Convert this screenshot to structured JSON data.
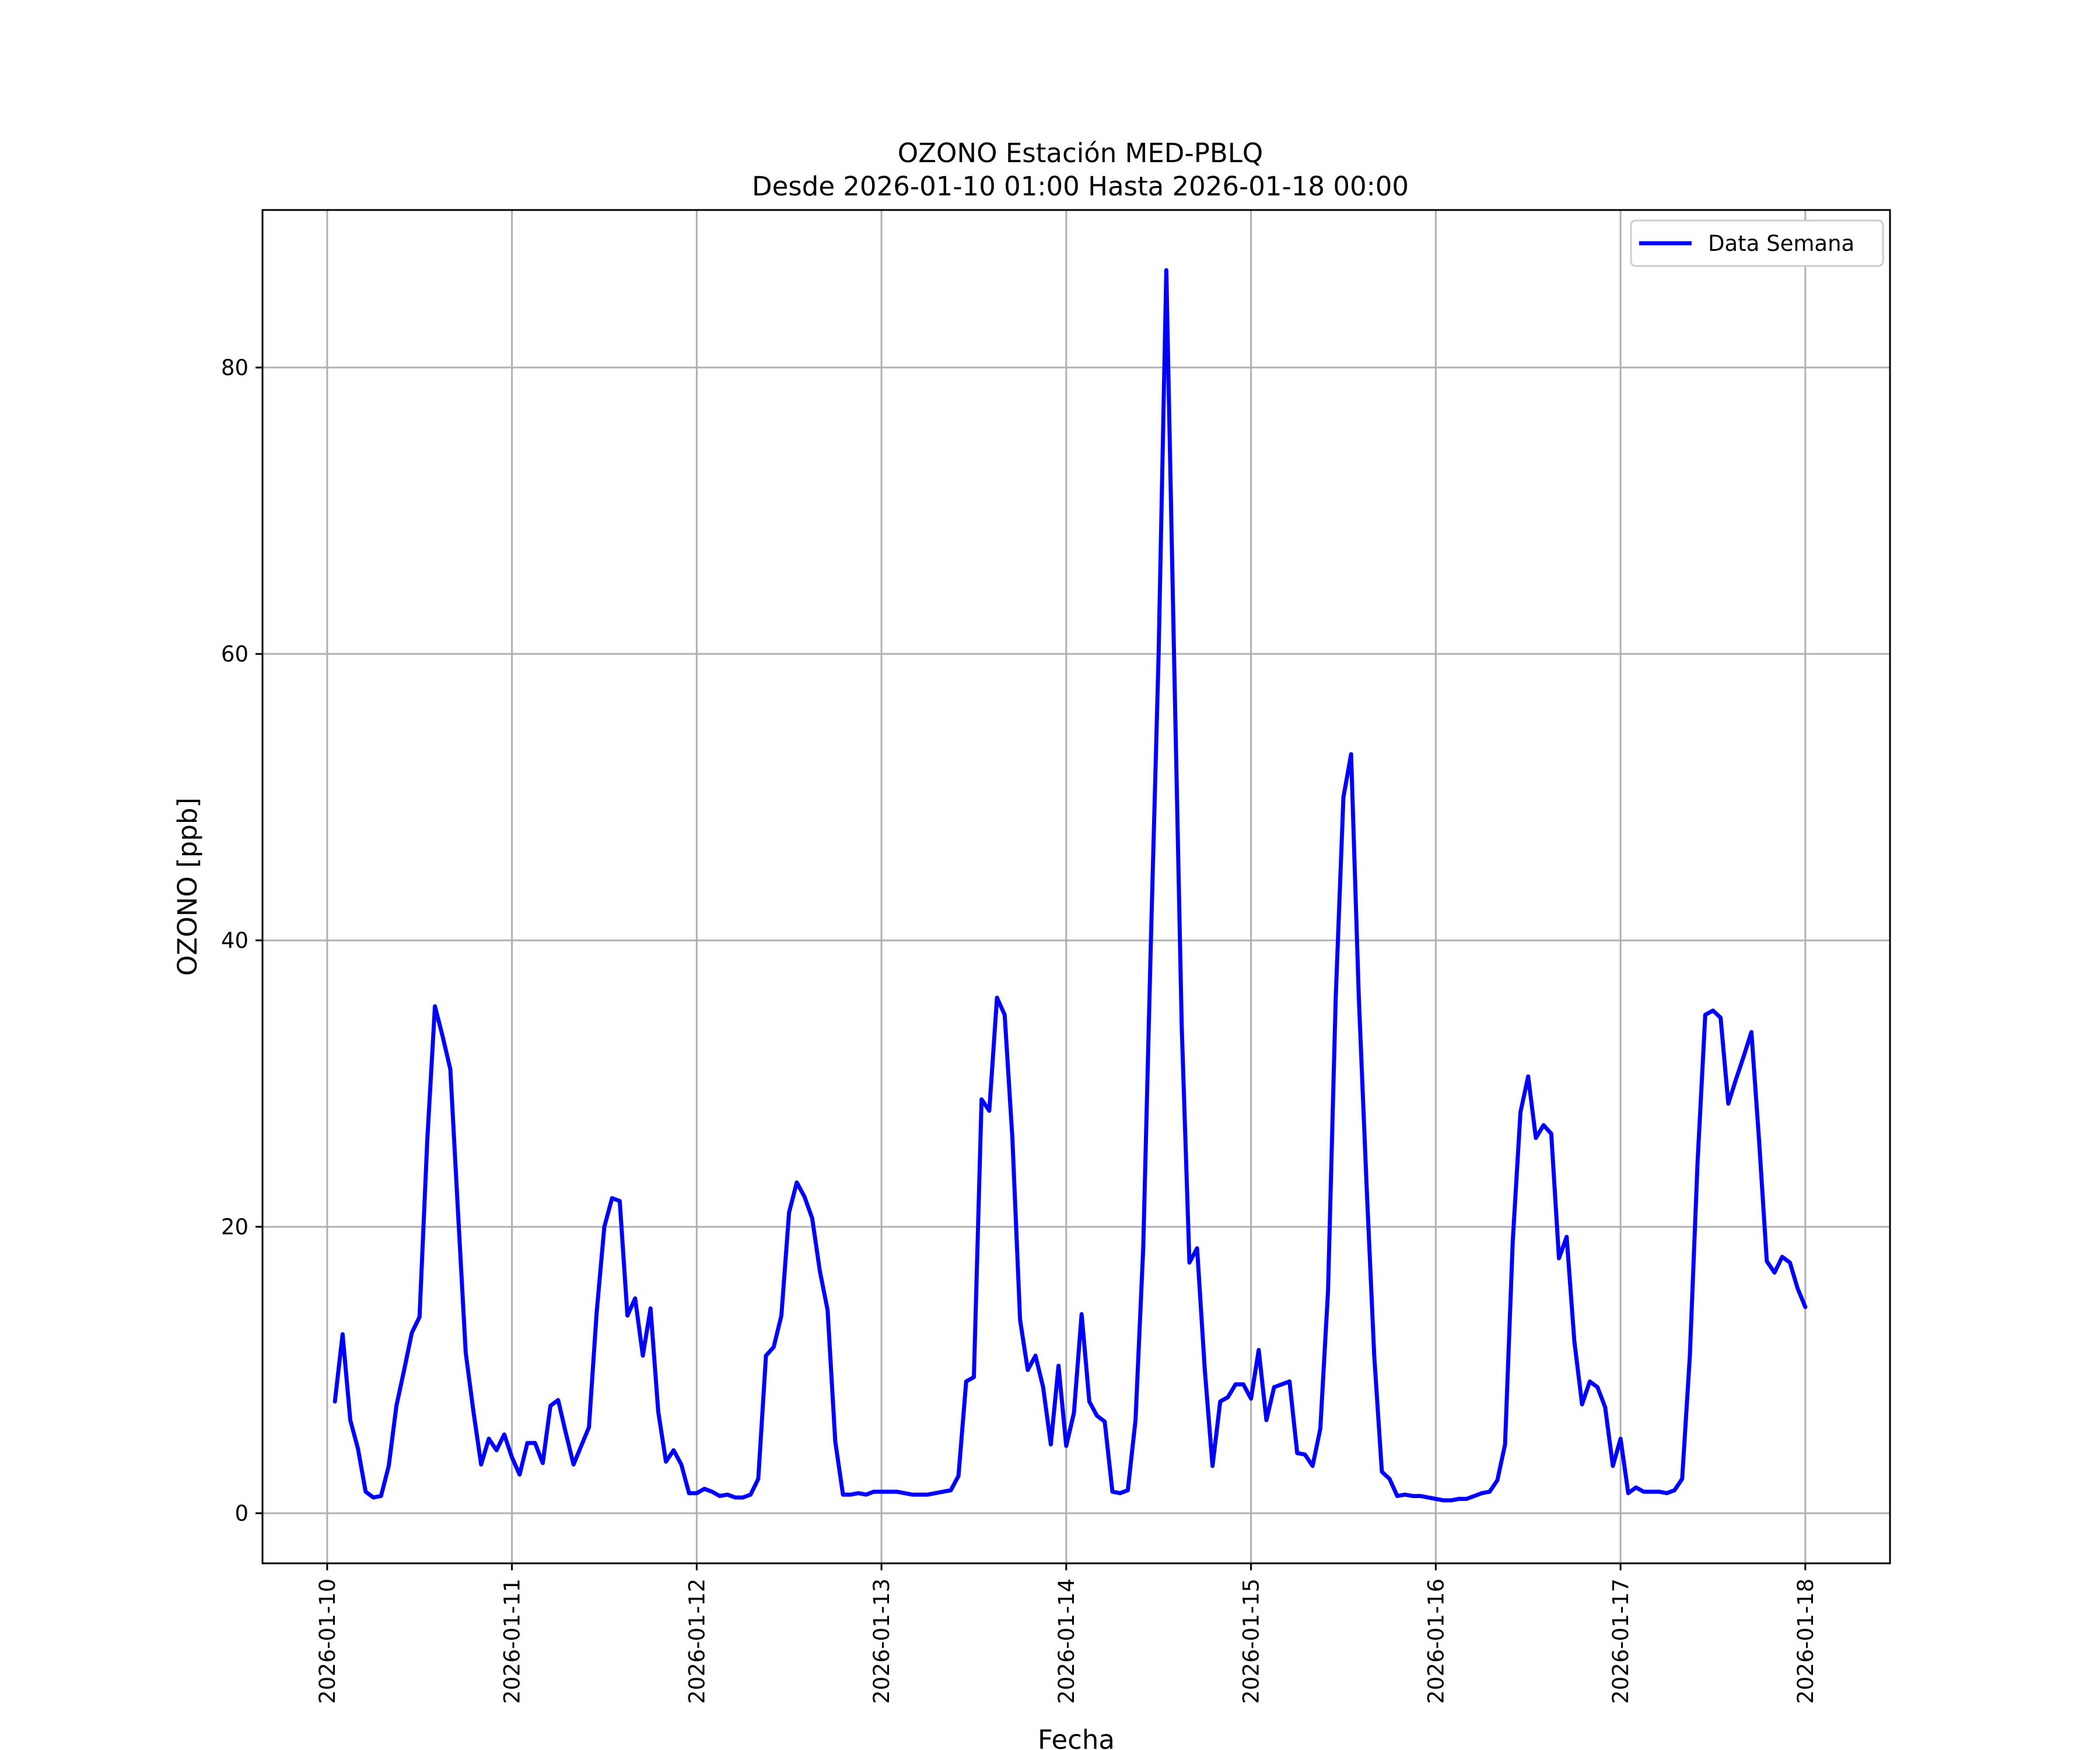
{
  "chart_data": {
    "type": "line",
    "title": "OZONO Estación MED-PBLQ",
    "subtitle": "Desde 2026-01-10 01:00 Hasta 2026-01-18 00:00",
    "xlabel": "Fecha",
    "ylabel": "OZONO [ppb]",
    "ylim": [
      -3.5,
      91
    ],
    "yticks": [
      0,
      20,
      40,
      60,
      80
    ],
    "xlim": [
      "2026-01-09 15:36",
      "2026-01-18 11:00"
    ],
    "xtick_labels": [
      "2026-01-10",
      "2026-01-11",
      "2026-01-12",
      "2026-01-13",
      "2026-01-14",
      "2026-01-15",
      "2026-01-16",
      "2026-01-17",
      "2026-01-18"
    ],
    "grid": true,
    "legend_position": "top-right",
    "colors": {
      "line": "#0000ff",
      "grid": "#b0b0b0",
      "frame": "#000000"
    },
    "series": [
      {
        "name": "Data Semana",
        "x": [
          "2026-01-10 01:00",
          "2026-01-10 02:00",
          "2026-01-10 03:00",
          "2026-01-10 04:00",
          "2026-01-10 05:00",
          "2026-01-10 06:00",
          "2026-01-10 07:00",
          "2026-01-10 08:00",
          "2026-01-10 09:00",
          "2026-01-10 10:00",
          "2026-01-10 11:00",
          "2026-01-10 12:00",
          "2026-01-10 13:00",
          "2026-01-10 14:00",
          "2026-01-10 15:00",
          "2026-01-10 16:00",
          "2026-01-10 17:00",
          "2026-01-10 18:00",
          "2026-01-10 19:00",
          "2026-01-10 20:00",
          "2026-01-10 21:00",
          "2026-01-10 22:00",
          "2026-01-10 23:00",
          "2026-01-11 00:00",
          "2026-01-11 01:00",
          "2026-01-11 02:00",
          "2026-01-11 03:00",
          "2026-01-11 04:00",
          "2026-01-11 05:00",
          "2026-01-11 06:00",
          "2026-01-11 07:00",
          "2026-01-11 08:00",
          "2026-01-11 09:00",
          "2026-01-11 10:00",
          "2026-01-11 11:00",
          "2026-01-11 12:00",
          "2026-01-11 13:00",
          "2026-01-11 14:00",
          "2026-01-11 15:00",
          "2026-01-11 16:00",
          "2026-01-11 17:00",
          "2026-01-11 18:00",
          "2026-01-11 19:00",
          "2026-01-11 20:00",
          "2026-01-11 21:00",
          "2026-01-11 22:00",
          "2026-01-11 23:00",
          "2026-01-12 00:00",
          "2026-01-12 01:00",
          "2026-01-12 02:00",
          "2026-01-12 03:00",
          "2026-01-12 04:00",
          "2026-01-12 05:00",
          "2026-01-12 06:00",
          "2026-01-12 07:00",
          "2026-01-12 08:00",
          "2026-01-12 09:00",
          "2026-01-12 10:00",
          "2026-01-12 11:00",
          "2026-01-12 12:00",
          "2026-01-12 13:00",
          "2026-01-12 14:00",
          "2026-01-12 15:00",
          "2026-01-12 16:00",
          "2026-01-12 17:00",
          "2026-01-12 18:00",
          "2026-01-12 19:00",
          "2026-01-12 20:00",
          "2026-01-12 21:00",
          "2026-01-12 22:00",
          "2026-01-12 23:00",
          "2026-01-13 00:00",
          "2026-01-13 01:00",
          "2026-01-13 02:00",
          "2026-01-13 03:00",
          "2026-01-13 04:00",
          "2026-01-13 05:00",
          "2026-01-13 06:00",
          "2026-01-13 07:00",
          "2026-01-13 08:00",
          "2026-01-13 09:00",
          "2026-01-13 10:00",
          "2026-01-13 11:00",
          "2026-01-13 12:00",
          "2026-01-13 13:00",
          "2026-01-13 14:00",
          "2026-01-13 15:00",
          "2026-01-13 16:00",
          "2026-01-13 17:00",
          "2026-01-13 18:00",
          "2026-01-13 19:00",
          "2026-01-13 20:00",
          "2026-01-13 21:00",
          "2026-01-13 22:00",
          "2026-01-13 23:00",
          "2026-01-14 00:00",
          "2026-01-14 01:00",
          "2026-01-14 02:00",
          "2026-01-14 03:00",
          "2026-01-14 04:00",
          "2026-01-14 05:00",
          "2026-01-14 06:00",
          "2026-01-14 07:00",
          "2026-01-14 08:00",
          "2026-01-14 09:00",
          "2026-01-14 10:00",
          "2026-01-14 11:00",
          "2026-01-14 12:00",
          "2026-01-14 13:00",
          "2026-01-14 14:00",
          "2026-01-14 15:00",
          "2026-01-14 16:00",
          "2026-01-14 17:00",
          "2026-01-14 18:00",
          "2026-01-14 19:00",
          "2026-01-14 20:00",
          "2026-01-14 21:00",
          "2026-01-14 22:00",
          "2026-01-14 23:00",
          "2026-01-15 00:00",
          "2026-01-15 01:00",
          "2026-01-15 02:00",
          "2026-01-15 03:00",
          "2026-01-15 04:00",
          "2026-01-15 05:00",
          "2026-01-15 06:00",
          "2026-01-15 07:00",
          "2026-01-15 08:00",
          "2026-01-15 09:00",
          "2026-01-15 10:00",
          "2026-01-15 11:00",
          "2026-01-15 12:00",
          "2026-01-15 13:00",
          "2026-01-15 14:00",
          "2026-01-15 15:00",
          "2026-01-15 16:00",
          "2026-01-15 17:00",
          "2026-01-15 18:00",
          "2026-01-15 19:00",
          "2026-01-15 20:00",
          "2026-01-15 21:00",
          "2026-01-15 22:00",
          "2026-01-15 23:00",
          "2026-01-16 00:00",
          "2026-01-16 01:00",
          "2026-01-16 02:00",
          "2026-01-16 03:00",
          "2026-01-16 04:00",
          "2026-01-16 05:00",
          "2026-01-16 06:00",
          "2026-01-16 07:00",
          "2026-01-16 08:00",
          "2026-01-16 09:00",
          "2026-01-16 10:00",
          "2026-01-16 11:00",
          "2026-01-16 12:00",
          "2026-01-16 13:00",
          "2026-01-16 14:00",
          "2026-01-16 15:00",
          "2026-01-16 16:00",
          "2026-01-16 17:00",
          "2026-01-16 18:00",
          "2026-01-16 19:00",
          "2026-01-16 20:00",
          "2026-01-16 21:00",
          "2026-01-16 22:00",
          "2026-01-16 23:00",
          "2026-01-17 00:00",
          "2026-01-17 01:00",
          "2026-01-17 02:00",
          "2026-01-17 03:00",
          "2026-01-17 04:00",
          "2026-01-17 05:00",
          "2026-01-17 06:00",
          "2026-01-17 07:00",
          "2026-01-17 08:00",
          "2026-01-17 09:00",
          "2026-01-17 10:00",
          "2026-01-17 11:00",
          "2026-01-17 12:00",
          "2026-01-17 13:00",
          "2026-01-17 14:00",
          "2026-01-17 15:00",
          "2026-01-17 16:00",
          "2026-01-17 17:00",
          "2026-01-17 18:00",
          "2026-01-17 19:00",
          "2026-01-17 20:00",
          "2026-01-17 21:00",
          "2026-01-17 22:00",
          "2026-01-17 23:00",
          "2026-01-18 00:00"
        ],
        "y": [
          7.8,
          12.5,
          6.5,
          4.5,
          1.5,
          1.1,
          1.2,
          3.3,
          7.5,
          10.0,
          12.6,
          13.7,
          26.0,
          35.4,
          33.3,
          31.0,
          21.0,
          11.2,
          7.1,
          3.4,
          5.2,
          4.4,
          5.5,
          3.9,
          2.7,
          4.9,
          4.9,
          3.5,
          7.5,
          7.9,
          5.6,
          3.4,
          4.7,
          6.0,
          14.0,
          20.0,
          22.0,
          21.8,
          13.8,
          15.0,
          11.0,
          14.3,
          7.1,
          3.6,
          4.4,
          3.4,
          1.4,
          1.4,
          1.7,
          1.5,
          1.2,
          1.3,
          1.1,
          1.1,
          1.3,
          2.4,
          11.0,
          11.6,
          13.8,
          21.0,
          23.1,
          22.1,
          20.6,
          16.9,
          14.2,
          5.0,
          1.3,
          1.3,
          1.4,
          1.3,
          1.5,
          1.5,
          1.5,
          1.5,
          1.4,
          1.3,
          1.3,
          1.3,
          1.4,
          1.5,
          1.6,
          2.6,
          9.2,
          9.5,
          28.9,
          28.1,
          36.0,
          34.8,
          26.2,
          13.5,
          10.0,
          11.0,
          8.8,
          4.8,
          10.3,
          4.7,
          7.0,
          13.9,
          7.8,
          6.8,
          6.4,
          1.5,
          1.4,
          1.6,
          6.5,
          18.5,
          40.0,
          60.0,
          86.8,
          60.0,
          34.0,
          17.5,
          18.5,
          10.0,
          3.3,
          7.8,
          8.1,
          9.0,
          9.0,
          8.0,
          11.4,
          6.5,
          8.8,
          9.0,
          9.2,
          4.2,
          4.1,
          3.3,
          5.9,
          15.5,
          36.0,
          50.0,
          53.0,
          36.0,
          23.0,
          11.0,
          2.9,
          2.4,
          1.2,
          1.3,
          1.2,
          1.2,
          1.1,
          1.0,
          0.9,
          0.9,
          1.0,
          1.0,
          1.2,
          1.4,
          1.5,
          2.3,
          4.8,
          19.0,
          28.0,
          30.5,
          26.2,
          27.1,
          26.5,
          17.8,
          19.3,
          12.0,
          7.6,
          9.2,
          8.8,
          7.4,
          3.3,
          5.2,
          1.4,
          1.8,
          1.5,
          1.5,
          1.5,
          1.4,
          1.6,
          2.4,
          11.0,
          24.5,
          34.8,
          35.1,
          34.6,
          28.6,
          30.3,
          31.9,
          33.6,
          26.0,
          17.6,
          16.8,
          17.9,
          17.5,
          15.7,
          14.4
        ]
      }
    ]
  }
}
